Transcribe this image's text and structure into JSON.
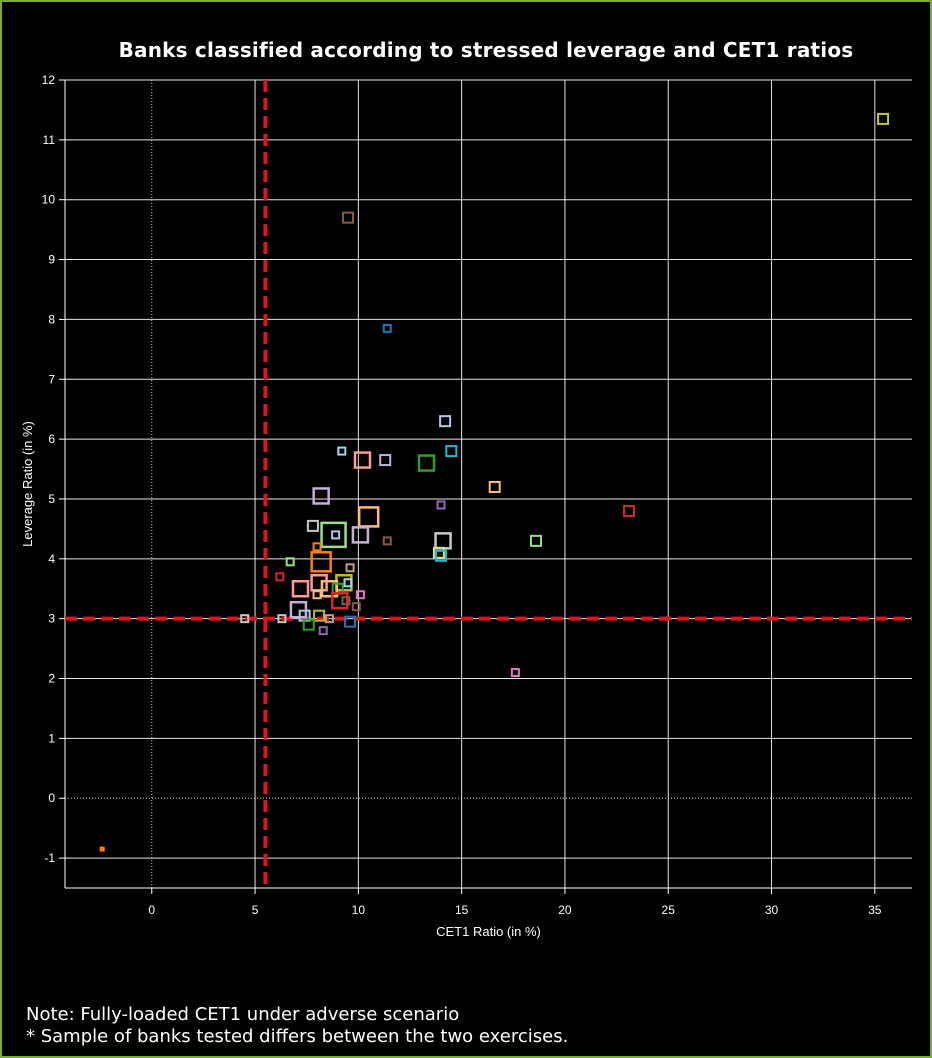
{
  "chart_data": {
    "type": "scatter",
    "title": "Banks classified according to stressed leverage and CET1 ratios",
    "xlabel": "CET1 Ratio (in %)",
    "ylabel": "Leverage Ratio (in %)",
    "xlim": [
      -4.2,
      36.8
    ],
    "ylim": [
      -1.5,
      12
    ],
    "x_ticks": [
      "0",
      "5",
      "10",
      "15",
      "20",
      "25",
      "30",
      "35"
    ],
    "y_ticks": [
      "-1",
      "0",
      "1",
      "2",
      "3",
      "4",
      "5",
      "6",
      "7",
      "8",
      "9",
      "10",
      "11",
      "12"
    ],
    "grid": true,
    "threshold_lines": {
      "x": 5.5,
      "y": 3
    },
    "points": [
      {
        "x": 35.4,
        "y": 11.35,
        "size": "small",
        "color": "#c8c83a"
      },
      {
        "x": 9.5,
        "y": 9.7,
        "size": "small",
        "color": "#8c564b"
      },
      {
        "x": 11.4,
        "y": 7.85,
        "size": "tiny",
        "color": "#1f77b4"
      },
      {
        "x": 14.2,
        "y": 6.3,
        "size": "small",
        "color": "#aec7e8"
      },
      {
        "x": 9.2,
        "y": 5.8,
        "size": "tiny",
        "color": "#9edae5"
      },
      {
        "x": 14.5,
        "y": 5.8,
        "size": "small",
        "color": "#17becf"
      },
      {
        "x": 10.2,
        "y": 5.65,
        "size": "medium",
        "color": "#ff9896"
      },
      {
        "x": 11.3,
        "y": 5.65,
        "size": "small",
        "color": "#c5b0d5"
      },
      {
        "x": 13.3,
        "y": 5.6,
        "size": "medium",
        "color": "#2ca02c"
      },
      {
        "x": 16.6,
        "y": 5.2,
        "size": "small",
        "color": "#ffbb78"
      },
      {
        "x": 8.2,
        "y": 5.05,
        "size": "medium",
        "color": "#c5b0d5"
      },
      {
        "x": 14.0,
        "y": 4.9,
        "size": "tiny",
        "color": "#9467bd"
      },
      {
        "x": 23.1,
        "y": 4.8,
        "size": "small",
        "color": "#d62728"
      },
      {
        "x": 10.5,
        "y": 4.7,
        "size": "large",
        "color": "#ffbb78"
      },
      {
        "x": 7.8,
        "y": 4.55,
        "size": "small",
        "color": "#c7c7c7"
      },
      {
        "x": 8.8,
        "y": 4.4,
        "size": "xlarge",
        "color": "#98df8a"
      },
      {
        "x": 10.1,
        "y": 4.4,
        "size": "medium",
        "color": "#c5b0d5"
      },
      {
        "x": 8.9,
        "y": 4.4,
        "size": "tiny",
        "color": "#aec7e8"
      },
      {
        "x": 11.4,
        "y": 4.3,
        "size": "tiny",
        "color": "#8c564b"
      },
      {
        "x": 14.1,
        "y": 4.3,
        "size": "medium",
        "color": "#c7c7c7"
      },
      {
        "x": 18.6,
        "y": 4.3,
        "size": "small",
        "color": "#98df8a"
      },
      {
        "x": 8.0,
        "y": 4.2,
        "size": "tiny",
        "color": "#ff7f0e"
      },
      {
        "x": 13.9,
        "y": 4.1,
        "size": "small",
        "color": "#dbdb8d"
      },
      {
        "x": 14.0,
        "y": 4.05,
        "size": "small",
        "color": "#17becf"
      },
      {
        "x": 8.2,
        "y": 3.95,
        "size": "large",
        "color": "#ff7f0e"
      },
      {
        "x": 6.7,
        "y": 3.95,
        "size": "tiny",
        "color": "#98df8a"
      },
      {
        "x": 9.6,
        "y": 3.85,
        "size": "tiny",
        "color": "#c49c94"
      },
      {
        "x": 6.2,
        "y": 3.7,
        "size": "tiny",
        "color": "#d62728"
      },
      {
        "x": 8.1,
        "y": 3.6,
        "size": "medium",
        "color": "#ff9896"
      },
      {
        "x": 9.3,
        "y": 3.6,
        "size": "medium",
        "color": "#bcbd22"
      },
      {
        "x": 9.5,
        "y": 3.6,
        "size": "tiny",
        "color": "#9edae5"
      },
      {
        "x": 7.2,
        "y": 3.5,
        "size": "medium",
        "color": "#ff9896"
      },
      {
        "x": 8.6,
        "y": 3.5,
        "size": "medium",
        "color": "#ffbb78"
      },
      {
        "x": 9.0,
        "y": 3.5,
        "size": "small",
        "color": "#2ca02c"
      },
      {
        "x": 8.0,
        "y": 3.4,
        "size": "tiny",
        "color": "#ffbb78"
      },
      {
        "x": 10.1,
        "y": 3.4,
        "size": "tiny",
        "color": "#e377c2"
      },
      {
        "x": 9.1,
        "y": 3.3,
        "size": "medium",
        "color": "#d62728"
      },
      {
        "x": 9.4,
        "y": 3.3,
        "size": "tiny",
        "color": "#8c564b"
      },
      {
        "x": 9.9,
        "y": 3.2,
        "size": "tiny",
        "color": "#8c564b"
      },
      {
        "x": 7.1,
        "y": 3.15,
        "size": "medium",
        "color": "#c5b0d5"
      },
      {
        "x": 6.3,
        "y": 3.0,
        "size": "tiny",
        "color": "#c7c7c7"
      },
      {
        "x": 4.5,
        "y": 3.0,
        "size": "tiny",
        "color": "#c7c7c7"
      },
      {
        "x": 7.4,
        "y": 3.05,
        "size": "small",
        "color": "#aec7e8"
      },
      {
        "x": 8.1,
        "y": 3.05,
        "size": "small",
        "color": "#bcbd22"
      },
      {
        "x": 8.6,
        "y": 3.0,
        "size": "tiny",
        "color": "#c49c94"
      },
      {
        "x": 7.6,
        "y": 2.9,
        "size": "small",
        "color": "#2ca02c"
      },
      {
        "x": 9.6,
        "y": 2.95,
        "size": "small",
        "color": "#1f77b4"
      },
      {
        "x": 8.3,
        "y": 2.8,
        "size": "tiny",
        "color": "#9467bd"
      },
      {
        "x": 17.6,
        "y": 2.1,
        "size": "tiny",
        "color": "#e377c2"
      },
      {
        "x": -2.4,
        "y": -0.85,
        "size": "dot",
        "color": "#ff7f0e"
      }
    ]
  },
  "notes": {
    "line1": "Note: Fully-loaded CET1 under adverse scenario",
    "line2": "* Sample of banks tested differs between the two exercises."
  },
  "colors": {
    "frame": "#79ad2e",
    "threshold": "#e0141e",
    "grid": "#ffffff",
    "background": "#000000"
  }
}
